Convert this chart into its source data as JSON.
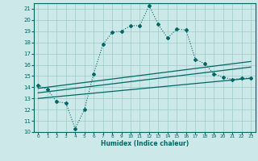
{
  "xlabel": "Humidex (Indice chaleur)",
  "xlim": [
    -0.5,
    23.5
  ],
  "ylim": [
    10,
    21.5
  ],
  "bg_color": "#cce8e8",
  "line_color": "#006666",
  "grid_color": "#99cccc",
  "main_x": [
    0,
    1,
    2,
    3,
    4,
    5,
    6,
    7,
    8,
    9,
    10,
    11,
    12,
    13,
    14,
    15,
    16,
    17,
    18,
    19,
    20,
    21,
    22,
    23
  ],
  "main_y": [
    14.2,
    13.8,
    12.7,
    12.6,
    10.3,
    12.0,
    15.2,
    17.8,
    18.9,
    19.0,
    19.5,
    19.5,
    21.3,
    19.6,
    18.4,
    19.2,
    19.1,
    16.5,
    16.1,
    15.2,
    14.9,
    14.7,
    14.8,
    14.8
  ],
  "line1_x": [
    0,
    23
  ],
  "line1_y": [
    13.9,
    16.3
  ],
  "line2_x": [
    0,
    23
  ],
  "line2_y": [
    13.5,
    15.8
  ],
  "line3_x": [
    0,
    23
  ],
  "line3_y": [
    13.0,
    14.8
  ],
  "yticks": [
    10,
    11,
    12,
    13,
    14,
    15,
    16,
    17,
    18,
    19,
    20,
    21
  ],
  "xticks": [
    0,
    1,
    2,
    3,
    4,
    5,
    6,
    7,
    8,
    9,
    10,
    11,
    12,
    13,
    14,
    15,
    16,
    17,
    18,
    19,
    20,
    21,
    22,
    23
  ]
}
